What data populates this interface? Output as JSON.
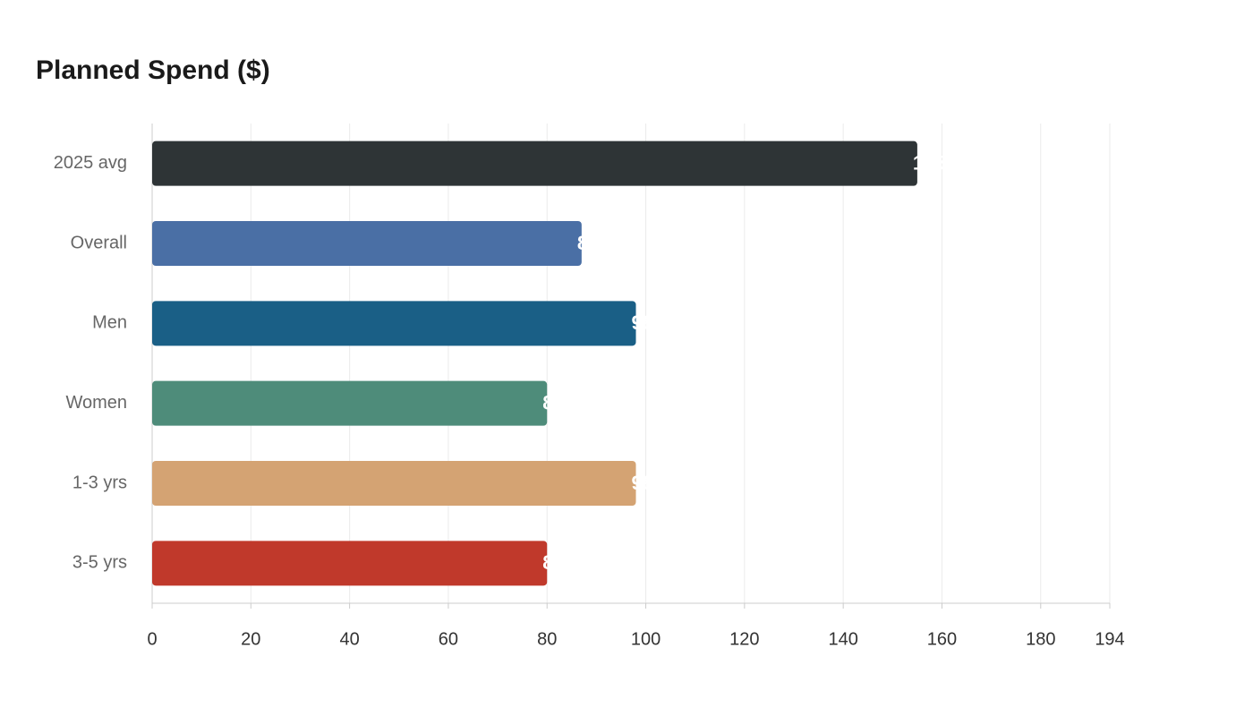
{
  "chart_data": {
    "type": "bar",
    "orientation": "horizontal",
    "title": "Planned Spend ($)",
    "categories": [
      "2025 avg",
      "Overall",
      "Men",
      "Women",
      "1-3 yrs",
      "3-5 yrs"
    ],
    "values": [
      155,
      87,
      98,
      80,
      98,
      80
    ],
    "colors": [
      "#2e3436",
      "#4a6fa5",
      "#1a5f86",
      "#4e8c7a",
      "#d4a373",
      "#c0392b"
    ],
    "xlim": [
      0,
      194
    ],
    "xticks": [
      0,
      20,
      40,
      60,
      80,
      100,
      120,
      140,
      160,
      180,
      194
    ],
    "grid": true
  }
}
